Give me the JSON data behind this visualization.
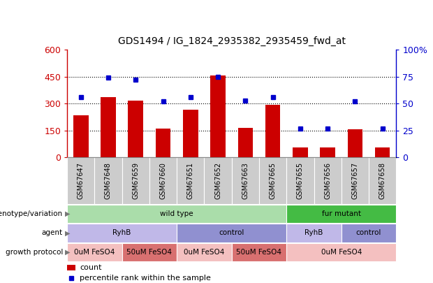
{
  "title": "GDS1494 / IG_1824_2935382_2935459_fwd_at",
  "samples": [
    "GSM67647",
    "GSM67648",
    "GSM67659",
    "GSM67660",
    "GSM67651",
    "GSM67652",
    "GSM67663",
    "GSM67665",
    "GSM67655",
    "GSM67656",
    "GSM67657",
    "GSM67658"
  ],
  "counts": [
    235,
    335,
    315,
    160,
    265,
    455,
    165,
    295,
    55,
    55,
    155,
    55
  ],
  "percentiles": [
    56,
    74,
    72,
    52,
    56,
    75,
    53,
    56,
    27,
    27,
    52,
    27
  ],
  "bar_color": "#cc0000",
  "dot_color": "#0000cc",
  "ylim_left": [
    0,
    600
  ],
  "ylim_right": [
    0,
    100
  ],
  "yticks_left": [
    0,
    150,
    300,
    450,
    600
  ],
  "yticks_right": [
    0,
    25,
    50,
    75,
    100
  ],
  "ytick_labels_left": [
    "0",
    "150",
    "300",
    "450",
    "600"
  ],
  "ytick_labels_right": [
    "0",
    "25",
    "50",
    "75",
    "100%"
  ],
  "grid_lines": [
    150,
    300,
    450
  ],
  "genotype_groups": [
    {
      "label": "wild type",
      "start": 0,
      "end": 8,
      "color": "#aaddaa"
    },
    {
      "label": "fur mutant",
      "start": 8,
      "end": 12,
      "color": "#44bb44"
    }
  ],
  "agent_groups": [
    {
      "label": "RyhB",
      "start": 0,
      "end": 4,
      "color": "#c0b8e8"
    },
    {
      "label": "control",
      "start": 4,
      "end": 8,
      "color": "#9090d0"
    },
    {
      "label": "RyhB",
      "start": 8,
      "end": 10,
      "color": "#c0b8e8"
    },
    {
      "label": "control",
      "start": 10,
      "end": 12,
      "color": "#9090d0"
    }
  ],
  "growth_groups": [
    {
      "label": "0uM FeSO4",
      "start": 0,
      "end": 2,
      "color": "#f4c0c0"
    },
    {
      "label": "50uM FeSO4",
      "start": 2,
      "end": 4,
      "color": "#d87070"
    },
    {
      "label": "0uM FeSO4",
      "start": 4,
      "end": 6,
      "color": "#f4c0c0"
    },
    {
      "label": "50uM FeSO4",
      "start": 6,
      "end": 8,
      "color": "#d87070"
    },
    {
      "label": "0uM FeSO4",
      "start": 8,
      "end": 12,
      "color": "#f4c0c0"
    }
  ],
  "row_labels": [
    "genotype/variation",
    "agent",
    "growth protocol"
  ],
  "legend_count_label": "count",
  "legend_pct_label": "percentile rank within the sample",
  "left_axis_color": "#cc0000",
  "right_axis_color": "#0000cc",
  "bg_color": "#ffffff",
  "plot_bg_color": "#ffffff",
  "tick_label_gray": "#555555",
  "xtick_bg": "#cccccc"
}
